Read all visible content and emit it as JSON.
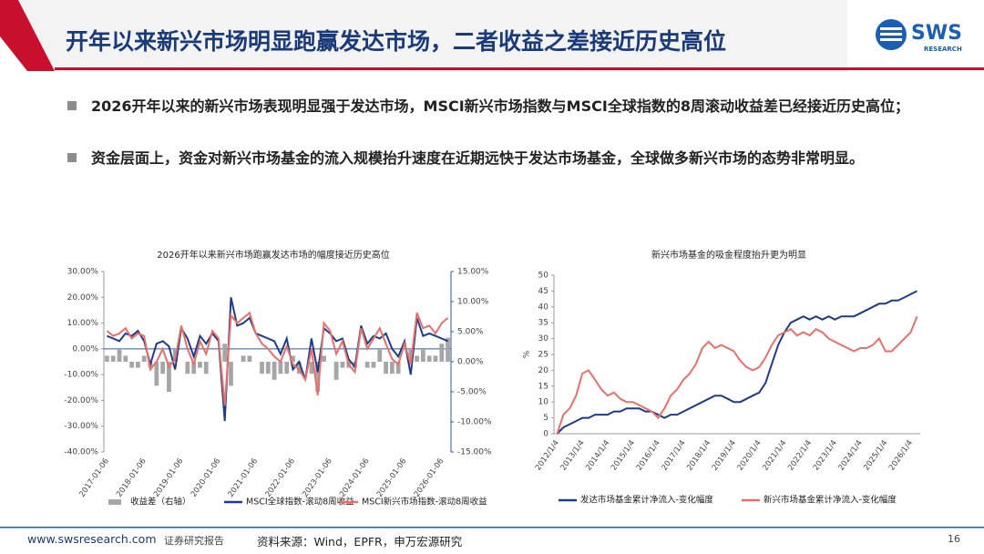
{
  "header": {
    "title": "开年以来新兴市场明显跑赢发达市场，二者收益之差接近历史高位",
    "logo": "SWS",
    "logo_sub": "RESEARCH"
  },
  "bullets": [
    "2026开年以来的新兴市场表现明显强于发达市场，MSCI新兴市场指数与MSCI全球指数的8周滚动收益差已经接近历史高位；",
    "资金层面上，资金对新兴市场基金的流入规模抬升速度在近期远快于发达市场基金，全球做多新兴市场的态势非常明显。"
  ],
  "footer": {
    "url": "www.swsresearch.com",
    "type": "证券研究报告",
    "source": "资料来源：Wind，EPFR，申万宏源研究",
    "page": "16"
  },
  "chart_data": [
    {
      "type": "combo",
      "title": "2026开年以来新兴市场跑赢发达市场的幅度接近历史高位",
      "categories": [
        "2017-01-06",
        null,
        null,
        null,
        null,
        null,
        "2018-01-06",
        null,
        null,
        null,
        null,
        null,
        "2019-01-06",
        null,
        null,
        null,
        null,
        null,
        "2020-01-06",
        null,
        null,
        null,
        null,
        null,
        "2021-01-06",
        null,
        null,
        null,
        null,
        null,
        "2022-01-06",
        null,
        null,
        null,
        null,
        null,
        "2023-01-06",
        null,
        null,
        null,
        null,
        null,
        "2024-01-06",
        null,
        null,
        null,
        null,
        null,
        "2025-01-06",
        null,
        null,
        null,
        null,
        null,
        "2026-01-06",
        null
      ],
      "series": [
        {
          "name": "收益差（右轴）",
          "type": "bar",
          "axis": "y2",
          "color": "#a6a6a6",
          "values": [
            1,
            1,
            2,
            1,
            -1,
            -1,
            1,
            -1,
            -4,
            -2,
            -5,
            2,
            0,
            -2,
            -2,
            -1,
            -2,
            0,
            0,
            3,
            -4,
            0,
            1,
            1,
            0,
            -2,
            -2,
            -3,
            -2,
            -2,
            1,
            -2,
            0,
            -2,
            -5,
            1,
            0,
            -3,
            -1,
            -1,
            -1,
            0,
            -1,
            -1,
            2,
            -2,
            -2,
            -2,
            0,
            2,
            1,
            2,
            1,
            1,
            3,
            4
          ]
        },
        {
          "name": "MSCI全球指数-滚动8周收益",
          "type": "line",
          "color": "#1f3c88",
          "values": [
            5,
            4,
            3,
            6,
            5,
            7,
            3,
            -6,
            2,
            3,
            1,
            -8,
            8,
            4,
            -3,
            5,
            2,
            6,
            3,
            -28,
            20,
            9,
            10,
            12,
            6,
            5,
            4,
            3,
            -2,
            4,
            -8,
            -5,
            -12,
            4,
            -9,
            8,
            6,
            3,
            4,
            -4,
            -7,
            9,
            2,
            5,
            4,
            6,
            0,
            -3,
            3,
            -10,
            12,
            5,
            6,
            5,
            4,
            3
          ]
        },
        {
          "name": "MSCI新兴市场指数-滚动8周收益",
          "type": "line",
          "color": "#e8706b",
          "values": [
            7,
            5,
            6,
            8,
            4,
            6,
            5,
            -8,
            -5,
            0,
            -7,
            -4,
            9,
            0,
            -6,
            3,
            -2,
            7,
            4,
            -22,
            13,
            10,
            12,
            14,
            6,
            2,
            0,
            -3,
            -5,
            1,
            -6,
            -8,
            -12,
            0,
            -18,
            10,
            7,
            -2,
            3,
            -6,
            -9,
            8,
            0,
            4,
            8,
            2,
            -4,
            -6,
            2,
            -6,
            14,
            8,
            9,
            6,
            10,
            12
          ]
        }
      ],
      "ylim": [
        -40,
        30
      ],
      "yticks": [
        {
          "value": -40,
          "label": "-40.00%"
        },
        {
          "value": -30,
          "label": "-30.00%"
        },
        {
          "value": -20,
          "label": "-20.00%"
        },
        {
          "value": -10,
          "label": "-10.00%"
        },
        {
          "value": 0,
          "label": "0.00%"
        },
        {
          "value": 10,
          "label": "10.00%"
        },
        {
          "value": 20,
          "label": "20.00%"
        },
        {
          "value": 30,
          "label": "30.00%"
        }
      ],
      "y2lim": [
        -15,
        15
      ],
      "y2ticks": [
        {
          "value": -15,
          "label": "-15.00%"
        },
        {
          "value": -10,
          "label": "-10.00%"
        },
        {
          "value": -5,
          "label": "-5.00%"
        },
        {
          "value": 0,
          "label": "0.00%"
        },
        {
          "value": 5,
          "label": "5.00%"
        },
        {
          "value": 10,
          "label": "10.00%"
        },
        {
          "value": 15,
          "label": "15.00%"
        }
      ]
    },
    {
      "type": "line",
      "title": "新兴市场基金的吸金程度抬升更为明显",
      "ylabel": "%",
      "categories": [
        "2012/1/4",
        null,
        null,
        null,
        "2013/1/4",
        null,
        null,
        null,
        "2014/1/4",
        null,
        null,
        null,
        "2015/1/4",
        null,
        null,
        null,
        "2016/1/4",
        null,
        null,
        null,
        "2017/1/4",
        null,
        null,
        null,
        "2018/1/4",
        null,
        null,
        null,
        "2019/1/4",
        null,
        null,
        null,
        "2020/1/4",
        null,
        null,
        null,
        "2021/1/4",
        null,
        null,
        null,
        "2022/1/4",
        null,
        null,
        null,
        "2023/1/4",
        null,
        null,
        null,
        "2024/1/4",
        null,
        null,
        null,
        "2025/1/4",
        null,
        null,
        null,
        "2026/1/4",
        null
      ],
      "series": [
        {
          "name": "发达市场基金累计净流入-变化幅度",
          "color": "#1f3c88",
          "values": [
            0,
            2,
            3,
            4,
            5,
            5,
            6,
            6,
            6,
            7,
            7,
            8,
            8,
            8,
            7,
            7,
            6,
            5,
            6,
            6,
            7,
            8,
            9,
            10,
            11,
            12,
            12,
            11,
            10,
            10,
            11,
            12,
            13,
            16,
            22,
            28,
            32,
            35,
            36,
            37,
            36,
            37,
            36,
            37,
            36,
            37,
            37,
            37,
            38,
            39,
            40,
            41,
            41,
            42,
            42,
            43,
            44,
            45
          ]
        },
        {
          "name": "新兴市场基金累计净流入-变化幅度",
          "color": "#e8706b",
          "values": [
            0,
            6,
            8,
            12,
            19,
            20,
            17,
            14,
            12,
            13,
            11,
            10,
            10,
            9,
            8,
            7,
            5,
            8,
            12,
            14,
            17,
            19,
            22,
            27,
            29,
            27,
            28,
            27,
            26,
            23,
            21,
            20,
            21,
            24,
            28,
            31,
            32,
            33,
            31,
            32,
            31,
            33,
            32,
            30,
            29,
            28,
            27,
            26,
            27,
            27,
            28,
            30,
            26,
            26,
            28,
            30,
            32,
            37
          ]
        }
      ],
      "ylim": [
        0,
        50
      ],
      "yticks": [
        0,
        5,
        10,
        15,
        20,
        25,
        30,
        35,
        40,
        45,
        50
      ]
    }
  ]
}
